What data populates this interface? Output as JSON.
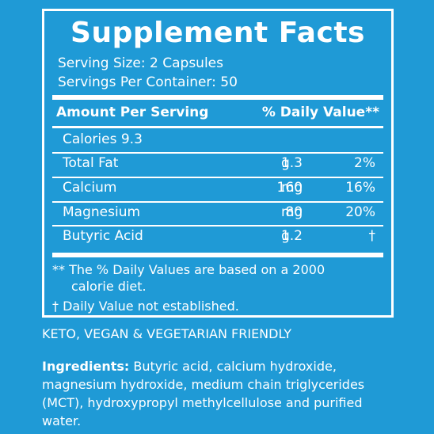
{
  "panel": {
    "title": "Supplement Facts",
    "serving_size": "Serving Size: 2 Capsules",
    "servings_per_container": "Servings Per Container: 50",
    "header_amount": "Amount Per Serving",
    "header_dv": "% Daily Value**",
    "calories": "Calories  9.3",
    "rows": [
      {
        "name": "Total Fat",
        "amount": "1.3",
        "unit": "g",
        "dv": "2%"
      },
      {
        "name": "Calcium",
        "amount": "160",
        "unit": "mg",
        "dv": "16%"
      },
      {
        "name": "Magnesium",
        "amount": "80",
        "unit": "mg",
        "dv": "20%"
      },
      {
        "name": "Butyric Acid",
        "amount": "1.2",
        "unit": "g",
        "dv": "†"
      }
    ],
    "footnote_line1": "** The % Daily Values are based on a 2000",
    "footnote_line2": "calorie diet.",
    "footnote_dagger": "†  Daily Value not established."
  },
  "friendly": "KETO, VEGAN & VEGETARIAN FRIENDLY",
  "ingredients": {
    "label": "Ingredients:",
    "text": " Butyric acid, calcium hydroxide, magnesium hydroxide, medium chain triglycerides (MCT), hydroxypropyl methylcellulose and purified water."
  },
  "colors": {
    "background": "#1f9ad6",
    "text": "#ffffff"
  }
}
